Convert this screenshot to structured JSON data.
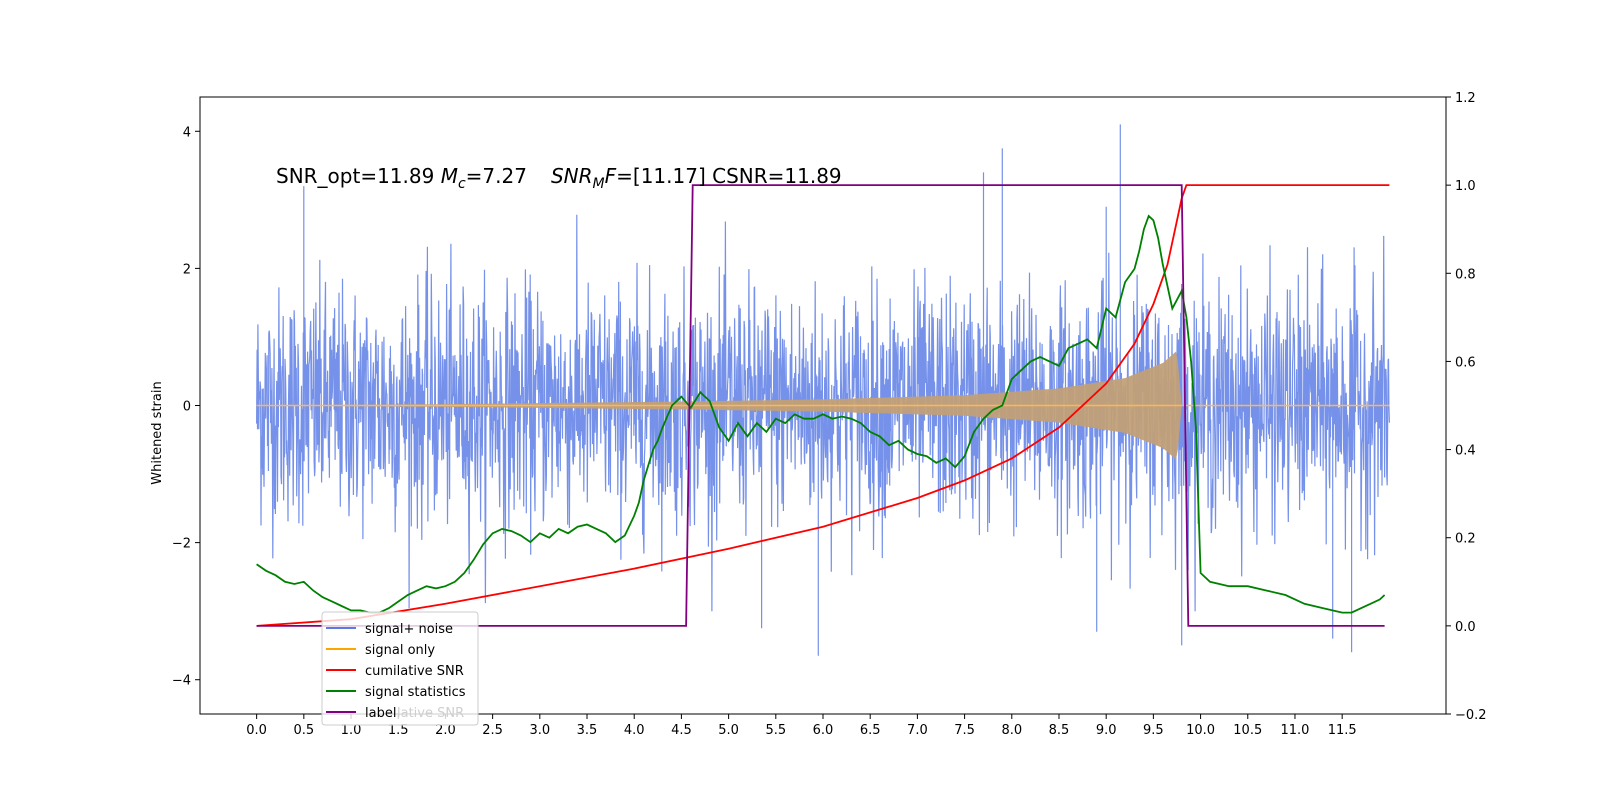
{
  "chart_data": {
    "type": "line",
    "annotation": {
      "part1": "SNR_opt=11.89 ",
      "mc_symbol": "M",
      "mc_sub": "c",
      "part2": "=7.27",
      "snr_symbol": "SNR",
      "snr_sub": "M",
      "snr_f": "F",
      "part3": "=[11.17] CSNR=11.89"
    },
    "ylabel_left": "Whitened strain",
    "ylabel_right": "",
    "xlim": [
      -0.6,
      12.6
    ],
    "ylim_left": [
      -4.5,
      4.5
    ],
    "ylim_right": [
      -0.2,
      1.2
    ],
    "xticks": [
      0.0,
      0.5,
      1.0,
      1.5,
      2.0,
      2.5,
      3.0,
      3.5,
      4.0,
      4.5,
      5.0,
      5.5,
      6.0,
      6.5,
      7.0,
      7.5,
      8.0,
      8.5,
      9.0,
      9.5,
      10.0,
      10.5,
      11.0,
      11.5
    ],
    "xtick_labels": [
      "0.0",
      "0.5",
      "1.0",
      "1.5",
      "2.0",
      "2.5",
      "3.0",
      "3.5",
      "4.0",
      "4.5",
      "5.0",
      "5.5",
      "6.0",
      "6.5",
      "7.0",
      "7.5",
      "8.0",
      "8.5",
      "9.0",
      "9.5",
      "10.0",
      "10.5",
      "11.0",
      "11.5"
    ],
    "yticks_left": [
      -4,
      -2,
      0,
      2,
      4
    ],
    "ytick_labels_left": [
      "−4",
      "−2",
      "0",
      "2",
      "4"
    ],
    "yticks_right": [
      -0.2,
      0.0,
      0.2,
      0.4,
      0.6,
      0.8,
      1.0,
      1.2
    ],
    "ytick_labels_right": [
      "−0.2",
      "0.0",
      "0.2",
      "0.4",
      "0.6",
      "0.8",
      "1.0",
      "1.2"
    ],
    "x_range": [
      0.0,
      12.0
    ],
    "signal_window": [
      4.6,
      9.8
    ],
    "noise_std": 0.85,
    "noise_spikes": [
      {
        "x": 0.5,
        "y": 3.2
      },
      {
        "x": 7.9,
        "y": 3.75
      },
      {
        "x": 7.7,
        "y": 3.4
      },
      {
        "x": 9.15,
        "y": 4.1
      },
      {
        "x": 9.0,
        "y": 2.9
      },
      {
        "x": 5.95,
        "y": -3.65
      },
      {
        "x": 11.6,
        "y": -3.6
      },
      {
        "x": 9.8,
        "y": -3.5
      },
      {
        "x": 8.9,
        "y": -3.3
      },
      {
        "x": 11.4,
        "y": -3.4
      },
      {
        "x": 5.35,
        "y": -3.25
      }
    ],
    "signal_envelope": [
      {
        "x": 0.0,
        "amp": 0.0
      },
      {
        "x": 2.0,
        "amp": 0.02
      },
      {
        "x": 4.6,
        "amp": 0.06
      },
      {
        "x": 6.0,
        "amp": 0.09
      },
      {
        "x": 7.5,
        "amp": 0.15
      },
      {
        "x": 8.5,
        "amp": 0.25
      },
      {
        "x": 9.2,
        "amp": 0.4
      },
      {
        "x": 9.6,
        "amp": 0.62
      },
      {
        "x": 9.75,
        "amp": 0.8
      },
      {
        "x": 9.8,
        "amp": 0.0
      },
      {
        "x": 12.0,
        "amp": 0.0
      }
    ],
    "cumulative_snr": {
      "x": [
        0.0,
        1.0,
        2.0,
        3.0,
        4.0,
        5.0,
        6.0,
        7.0,
        7.5,
        8.0,
        8.5,
        9.0,
        9.3,
        9.5,
        9.65,
        9.75,
        9.8,
        9.85,
        12.0
      ],
      "y": [
        0.0,
        0.015,
        0.05,
        0.09,
        0.13,
        0.175,
        0.225,
        0.29,
        0.33,
        0.38,
        0.45,
        0.55,
        0.64,
        0.73,
        0.82,
        0.92,
        0.97,
        1.0,
        1.0
      ]
    },
    "signal_statistics": {
      "x": [
        0.0,
        0.1,
        0.2,
        0.3,
        0.4,
        0.5,
        0.6,
        0.7,
        0.8,
        0.9,
        1.0,
        1.1,
        1.2,
        1.3,
        1.4,
        1.5,
        1.6,
        1.7,
        1.8,
        1.9,
        2.0,
        2.1,
        2.2,
        2.3,
        2.4,
        2.5,
        2.6,
        2.7,
        2.8,
        2.9,
        3.0,
        3.1,
        3.2,
        3.3,
        3.4,
        3.5,
        3.6,
        3.7,
        3.8,
        3.9,
        4.0,
        4.05,
        4.1,
        4.2,
        4.25,
        4.3,
        4.4,
        4.5,
        4.6,
        4.7,
        4.8,
        4.9,
        5.0,
        5.1,
        5.2,
        5.3,
        5.4,
        5.5,
        5.6,
        5.7,
        5.8,
        5.9,
        6.0,
        6.1,
        6.2,
        6.3,
        6.4,
        6.5,
        6.6,
        6.7,
        6.8,
        6.9,
        7.0,
        7.1,
        7.2,
        7.3,
        7.4,
        7.5,
        7.6,
        7.7,
        7.8,
        7.9,
        8.0,
        8.1,
        8.2,
        8.3,
        8.4,
        8.5,
        8.6,
        8.7,
        8.8,
        8.9,
        9.0,
        9.1,
        9.2,
        9.3,
        9.35,
        9.4,
        9.45,
        9.5,
        9.55,
        9.6,
        9.7,
        9.8,
        9.85,
        9.9,
        9.95,
        10.0,
        10.1,
        10.3,
        10.5,
        10.7,
        10.9,
        11.1,
        11.3,
        11.5,
        11.6,
        11.7,
        11.8,
        11.9,
        11.95
      ],
      "y": [
        0.14,
        0.125,
        0.115,
        0.1,
        0.095,
        0.1,
        0.08,
        0.065,
        0.055,
        0.045,
        0.035,
        0.035,
        0.03,
        0.03,
        0.04,
        0.055,
        0.07,
        0.08,
        0.09,
        0.085,
        0.09,
        0.1,
        0.12,
        0.15,
        0.185,
        0.21,
        0.22,
        0.215,
        0.205,
        0.19,
        0.21,
        0.2,
        0.22,
        0.21,
        0.225,
        0.23,
        0.22,
        0.21,
        0.19,
        0.205,
        0.25,
        0.28,
        0.33,
        0.4,
        0.42,
        0.45,
        0.5,
        0.52,
        0.495,
        0.53,
        0.51,
        0.45,
        0.42,
        0.46,
        0.43,
        0.46,
        0.44,
        0.47,
        0.46,
        0.48,
        0.47,
        0.47,
        0.48,
        0.47,
        0.475,
        0.47,
        0.46,
        0.44,
        0.43,
        0.41,
        0.42,
        0.4,
        0.39,
        0.385,
        0.37,
        0.38,
        0.36,
        0.385,
        0.44,
        0.47,
        0.49,
        0.5,
        0.56,
        0.58,
        0.6,
        0.61,
        0.6,
        0.59,
        0.63,
        0.64,
        0.65,
        0.63,
        0.72,
        0.7,
        0.78,
        0.81,
        0.85,
        0.9,
        0.93,
        0.92,
        0.88,
        0.82,
        0.72,
        0.76,
        0.7,
        0.6,
        0.45,
        0.12,
        0.1,
        0.09,
        0.09,
        0.08,
        0.07,
        0.05,
        0.04,
        0.03,
        0.03,
        0.04,
        0.05,
        0.06,
        0.07
      ]
    },
    "label_series": {
      "x": [
        0.0,
        4.55,
        4.62,
        9.8,
        9.87,
        11.95
      ],
      "y": [
        0.0,
        0.0,
        1.0,
        1.0,
        0.0,
        0.0
      ]
    },
    "legend": {
      "placement": "lower-left",
      "entries": [
        {
          "label": "signal+ noise",
          "color": "#5b7be0"
        },
        {
          "label": "signal only",
          "color": "#ffa500"
        },
        {
          "label": "cumilative SNR",
          "color": "#ff0000"
        },
        {
          "label": "signal statistics",
          "color": "#008000"
        },
        {
          "label": "label",
          "color": "#800080"
        }
      ],
      "ghost_text": "lative SNR"
    },
    "colors": {
      "noise": "#6e8be8",
      "signal": "#ffb84d",
      "signal_fill": "#c1a078",
      "cumulative": "#ff0000",
      "stats": "#008000",
      "label": "#800080"
    }
  }
}
